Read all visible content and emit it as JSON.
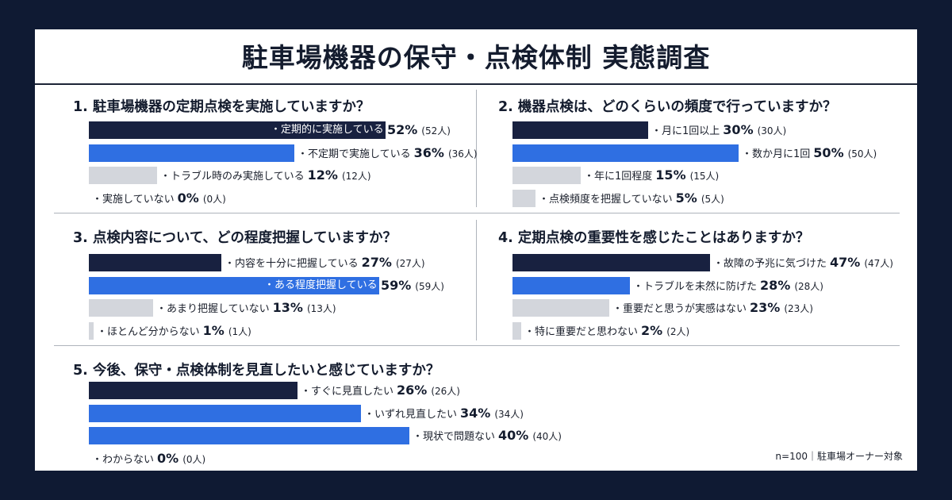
{
  "title": "駐車場機器の保守・点検体制 実態調査",
  "footnote": "n=100｜駐車場オーナー対象",
  "chart_data": [
    {
      "type": "bar",
      "title": "1. 駐車場機器の定期点検を実施していますか？",
      "xlim": [
        0,
        100
      ],
      "items": [
        {
          "label": "定期的に実施している",
          "value": 52,
          "count": "(52人)",
          "color": "navy",
          "inside": true
        },
        {
          "label": "不定期で実施している",
          "value": 36,
          "count": "(36人)",
          "color": "blue",
          "inside": false
        },
        {
          "label": "トラブル時のみ実施している",
          "value": 12,
          "count": "(12人)",
          "color": "gray",
          "inside": false
        },
        {
          "label": "実施していない",
          "value": 0,
          "count": "(0人)",
          "color": "gray",
          "inside": false
        }
      ]
    },
    {
      "type": "bar",
      "title": "2. 機器点検は、どのくらいの頻度で行っていますか？",
      "xlim": [
        0,
        100
      ],
      "items": [
        {
          "label": "月に1回以上",
          "value": 30,
          "count": "(30人)",
          "color": "navy",
          "inside": false
        },
        {
          "label": "数か月に1回",
          "value": 50,
          "count": "(50人)",
          "color": "blue",
          "inside": false
        },
        {
          "label": "年に1回程度",
          "value": 15,
          "count": "(15人)",
          "color": "gray",
          "inside": false
        },
        {
          "label": "点検頻度を把握していない",
          "value": 5,
          "count": "(5人)",
          "color": "gray",
          "inside": false
        }
      ]
    },
    {
      "type": "bar",
      "title": "3. 点検内容について、どの程度把握していますか？",
      "xlim": [
        0,
        100
      ],
      "items": [
        {
          "label": "内容を十分に把握している",
          "value": 27,
          "count": "(27人)",
          "color": "navy",
          "inside": false
        },
        {
          "label": "ある程度把握している",
          "value": 59,
          "count": "(59人)",
          "color": "blue",
          "inside": true
        },
        {
          "label": "あまり把握していない",
          "value": 13,
          "count": "(13人)",
          "color": "gray",
          "inside": false
        },
        {
          "label": "ほとんど分からない",
          "value": 1,
          "count": "(1人)",
          "color": "gray",
          "inside": false
        }
      ]
    },
    {
      "type": "bar",
      "title": "4. 定期点検の重要性を感じたことはありますか？",
      "xlim": [
        0,
        100
      ],
      "items": [
        {
          "label": "故障の予兆に気づけた",
          "value": 47,
          "count": "(47人)",
          "color": "navy",
          "inside": false
        },
        {
          "label": "トラブルを未然に防げた",
          "value": 28,
          "count": "(28人)",
          "color": "blue",
          "inside": false
        },
        {
          "label": "重要だと思うが実感はない",
          "value": 23,
          "count": "(23人)",
          "color": "gray",
          "inside": false
        },
        {
          "label": "特に重要だと思わない",
          "value": 2,
          "count": "(2人)",
          "color": "gray",
          "inside": false
        }
      ]
    },
    {
      "type": "bar",
      "title": "5. 今後、保守・点検体制を見直したいと感じていますか？",
      "xlim": [
        0,
        100
      ],
      "items": [
        {
          "label": "すぐに見直したい",
          "value": 26,
          "count": "(26人)",
          "color": "navy",
          "inside": false
        },
        {
          "label": "いずれ見直したい",
          "value": 34,
          "count": "(34人)",
          "color": "blue",
          "inside": false
        },
        {
          "label": "現状で問題ない",
          "value": 40,
          "count": "(40人)",
          "color": "blue",
          "inside": false
        },
        {
          "label": "わからない",
          "value": 0,
          "count": "(0人)",
          "color": "gray",
          "inside": false
        }
      ]
    }
  ]
}
